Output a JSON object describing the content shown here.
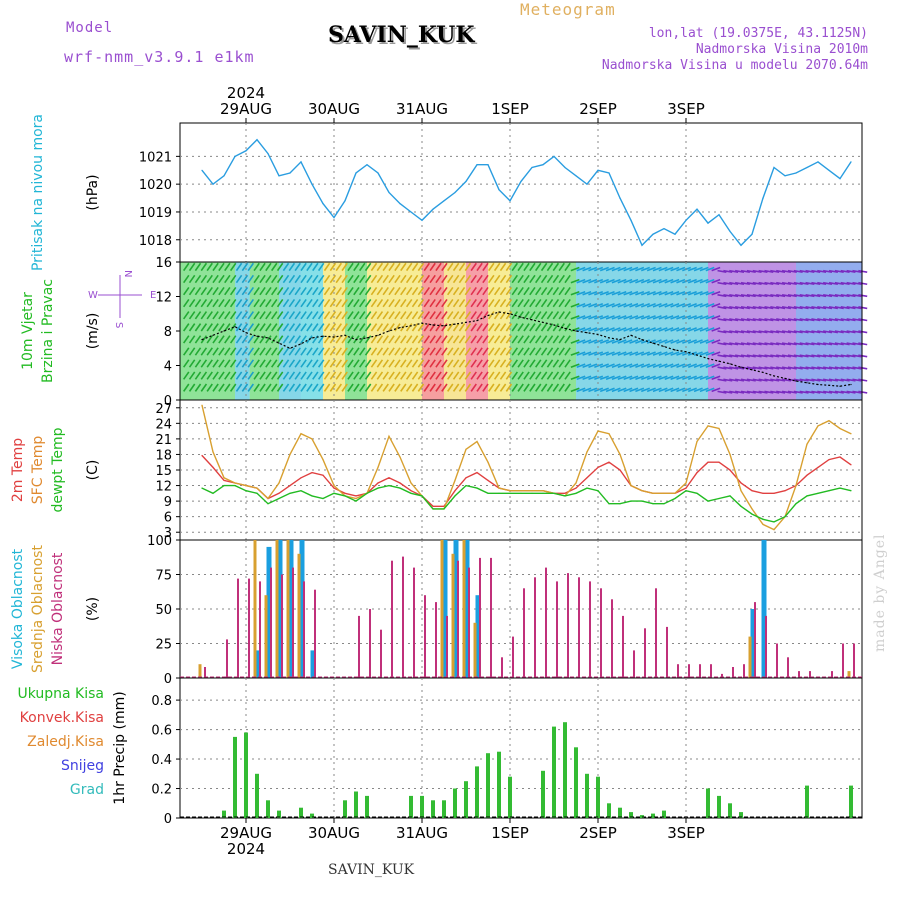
{
  "header": {
    "model_label": "Model",
    "model_name": "wrf-nmm_v3.9.1  e1km",
    "station": "SAVIN_KUK",
    "product": "Meteogram",
    "lonlat": "lon,lat (19.0375E, 43.1125N)",
    "elevation": "Nadmorska Visina 2010m",
    "model_elevation": "Nadmorska Visina u modelu 2070.64m"
  },
  "footer": {
    "station": "SAVIN_KUK",
    "watermark": "made by Angel"
  },
  "colors": {
    "pressure": "#2a9de0",
    "wind_avg": "#000000",
    "t2m": "#e04040",
    "sfc": "#d8a030",
    "dewpt": "#22bb22",
    "high_cloud": "#1a9fe0",
    "mid_cloud": "#d8a030",
    "low_cloud": "#c0307a",
    "precip_total": "#33bb33",
    "label_green": "#22bb22",
    "label_cyan": "#22b6d6",
    "label_magenta": "#c0307a",
    "label_orange": "#e08a30",
    "label_red": "#e04040",
    "label_blue": "#4040e0",
    "label_teal": "#33bbbb",
    "label_purple": "#9a4fd0"
  },
  "chart_data": [
    {
      "type": "line",
      "panel": "pressure",
      "title_lines": [
        "Pritisak na nivou mora"
      ],
      "ylabel": "(hPa)",
      "ylim": [
        1017.2,
        1022.2
      ],
      "yticks": [
        1018,
        1019,
        1020,
        1021
      ],
      "x_hours": [
        0,
        3,
        6,
        9,
        12,
        15,
        18,
        21,
        24,
        27,
        30,
        33,
        36,
        39,
        42,
        45,
        48,
        51,
        54,
        57,
        60,
        63,
        66,
        69,
        72,
        75,
        78,
        81,
        84,
        87,
        90,
        93,
        96,
        99,
        102,
        105,
        108,
        111,
        114,
        117,
        120,
        123,
        126,
        129,
        132,
        135,
        138,
        141,
        144,
        147,
        150,
        153,
        156,
        159,
        162,
        165,
        168,
        171,
        174,
        177
      ],
      "series": [
        {
          "values": [
            1020.5,
            1020.0,
            1020.3,
            1021.0,
            1021.2,
            1021.6,
            1021.1,
            1020.3,
            1020.4,
            1020.8,
            1020.0,
            1019.3,
            1018.8,
            1019.4,
            1020.4,
            1020.7,
            1020.4,
            1019.7,
            1019.3,
            1019.0,
            1018.7,
            1019.1,
            1019.4,
            1019.7,
            1020.1,
            1020.7,
            1020.7,
            1019.8,
            1019.4,
            1020.1,
            1020.6,
            1020.7,
            1021.0,
            1020.6,
            1020.3,
            1020.0,
            1020.5,
            1020.4,
            1019.5,
            1018.7,
            1017.8,
            1018.2,
            1018.4,
            1018.2,
            1018.7,
            1019.1,
            1018.6,
            1018.9,
            1018.3,
            1017.8,
            1018.2,
            1019.5,
            1020.6,
            1020.3,
            1020.4,
            1020.6,
            1020.8,
            1020.5,
            1020.2,
            1020.8
          ]
        }
      ]
    },
    {
      "type": "line",
      "panel": "wind",
      "title_lines": [
        "10m Vjetar",
        "Brzina i Pravac"
      ],
      "ylabel": "(m/s)",
      "ylim": [
        0,
        16
      ],
      "yticks": [
        0,
        4,
        8,
        12,
        16
      ],
      "compass": {
        "north": "N",
        "south": "S",
        "west": "W",
        "east": "E"
      },
      "x_hours": [
        0,
        3,
        6,
        9,
        12,
        15,
        18,
        21,
        24,
        27,
        30,
        33,
        36,
        39,
        42,
        45,
        48,
        51,
        54,
        57,
        60,
        63,
        66,
        69,
        72,
        75,
        78,
        81,
        84,
        87,
        90,
        93,
        96,
        99,
        102,
        105,
        108,
        111,
        114,
        117,
        120,
        123,
        126,
        129,
        132,
        135,
        138,
        141,
        144,
        147,
        150,
        153,
        156,
        159,
        162,
        165,
        168,
        171,
        174,
        177
      ],
      "series": [
        {
          "name": "avg",
          "values": [
            7.0,
            7.5,
            8.0,
            8.5,
            7.8,
            7.4,
            7.2,
            6.6,
            6.0,
            6.5,
            7.2,
            7.4,
            7.3,
            7.5,
            7.0,
            7.2,
            7.5,
            8.0,
            8.4,
            8.6,
            8.9,
            8.7,
            8.6,
            8.8,
            9.0,
            9.2,
            9.8,
            10.2,
            10.0,
            9.6,
            9.3,
            9.0,
            8.7,
            8.3,
            8.0,
            7.8,
            7.6,
            7.2,
            7.0,
            7.5,
            7.0,
            6.6,
            6.2,
            5.8,
            5.6,
            5.2,
            4.8,
            4.5,
            4.2,
            3.8,
            3.5,
            3.2,
            2.8,
            2.5,
            2.2,
            2.0,
            1.8,
            1.7,
            1.6,
            1.8
          ]
        }
      ]
    },
    {
      "type": "line",
      "panel": "temperature",
      "title_lines": [
        "2m Temp",
        "SFC Temp",
        "dewpt Temp"
      ],
      "ylabel": "(C)",
      "ylim": [
        1.5,
        28.5
      ],
      "yticks": [
        3,
        6,
        9,
        12,
        15,
        18,
        21,
        24,
        27
      ],
      "x_hours": [
        0,
        3,
        6,
        9,
        12,
        15,
        18,
        21,
        24,
        27,
        30,
        33,
        36,
        39,
        42,
        45,
        48,
        51,
        54,
        57,
        60,
        63,
        66,
        69,
        72,
        75,
        78,
        81,
        84,
        87,
        90,
        93,
        96,
        99,
        102,
        105,
        108,
        111,
        114,
        117,
        120,
        123,
        126,
        129,
        132,
        135,
        138,
        141,
        144,
        147,
        150,
        153,
        156,
        159,
        162,
        165,
        168,
        171,
        174,
        177
      ],
      "series": [
        {
          "name": "2m Temp",
          "values": [
            17.8,
            15.5,
            13.0,
            12.5,
            12.0,
            11.5,
            9.5,
            10.5,
            12.0,
            13.5,
            14.5,
            14.0,
            11.5,
            10.5,
            10.0,
            10.5,
            12.5,
            13.5,
            12.5,
            11.0,
            10.0,
            8.0,
            8.0,
            11.0,
            13.5,
            14.5,
            13.0,
            11.5,
            11.0,
            11.0,
            11.0,
            11.0,
            10.5,
            10.5,
            11.5,
            13.5,
            15.5,
            16.5,
            15.0,
            12.0,
            11.0,
            10.5,
            10.5,
            10.5,
            11.5,
            14.5,
            16.5,
            16.5,
            15.0,
            12.5,
            11.0,
            10.5,
            10.5,
            11.0,
            12.0,
            14.0,
            15.5,
            17.0,
            17.5,
            16.0
          ]
        },
        {
          "name": "SFC Temp",
          "values": [
            27.5,
            18.5,
            13.5,
            12.5,
            12.0,
            11.5,
            9.5,
            12.5,
            18.0,
            22.0,
            21.0,
            17.0,
            12.0,
            10.0,
            9.5,
            10.5,
            15.5,
            21.5,
            17.5,
            12.5,
            10.0,
            7.5,
            7.5,
            13.0,
            19.0,
            20.5,
            16.5,
            11.5,
            11.0,
            11.0,
            11.0,
            11.0,
            10.5,
            10.0,
            12.5,
            18.5,
            22.5,
            22.0,
            18.0,
            12.0,
            11.0,
            10.5,
            10.5,
            10.5,
            12.5,
            20.5,
            23.5,
            23.0,
            18.0,
            11.0,
            7.5,
            4.5,
            3.5,
            6.0,
            12.0,
            20.0,
            23.5,
            24.5,
            23.0,
            22.0
          ]
        },
        {
          "name": "dewpt Temp",
          "values": [
            11.5,
            10.5,
            12.0,
            12.0,
            11.0,
            10.5,
            8.5,
            9.5,
            10.5,
            11.0,
            10.0,
            9.5,
            10.5,
            10.0,
            9.0,
            10.5,
            11.5,
            12.0,
            11.5,
            10.5,
            10.0,
            7.5,
            7.5,
            10.0,
            12.0,
            11.5,
            10.5,
            10.5,
            10.5,
            10.5,
            10.5,
            10.5,
            10.5,
            10.0,
            10.5,
            11.5,
            11.0,
            8.5,
            8.5,
            9.0,
            9.0,
            8.5,
            8.5,
            9.5,
            11.0,
            10.5,
            9.0,
            9.5,
            10.0,
            8.0,
            6.5,
            5.5,
            5.0,
            6.0,
            8.5,
            10.0,
            10.5,
            11.0,
            11.5,
            11.0
          ]
        }
      ]
    },
    {
      "type": "bar",
      "panel": "cloud",
      "title_lines": [
        "Visoka Oblacnost",
        "Srednja Oblacnost",
        "Niska Oblacnost"
      ],
      "ylabel": "(%)",
      "ylim": [
        0,
        100
      ],
      "yticks": [
        0,
        25,
        50,
        75,
        100
      ],
      "x_hours": [
        0,
        3,
        6,
        9,
        12,
        15,
        18,
        21,
        24,
        27,
        30,
        33,
        36,
        39,
        42,
        45,
        48,
        51,
        54,
        57,
        60,
        63,
        66,
        69,
        72,
        75,
        78,
        81,
        84,
        87,
        90,
        93,
        96,
        99,
        102,
        105,
        108,
        111,
        114,
        117,
        120,
        123,
        126,
        129,
        132,
        135,
        138,
        141,
        144,
        147,
        150,
        153,
        156,
        159,
        162,
        165,
        168,
        171,
        174,
        177
      ],
      "series": [
        {
          "name": "Visoka Oblacnost",
          "values": [
            0,
            0,
            0,
            0,
            0,
            20,
            95,
            100,
            100,
            100,
            20,
            0,
            0,
            0,
            0,
            0,
            0,
            0,
            0,
            0,
            0,
            0,
            100,
            100,
            100,
            60,
            0,
            0,
            0,
            0,
            0,
            0,
            0,
            0,
            0,
            0,
            0,
            0,
            0,
            0,
            0,
            0,
            0,
            0,
            0,
            0,
            0,
            0,
            0,
            0,
            50,
            100,
            0,
            0,
            0,
            0,
            0,
            0,
            0,
            0
          ]
        },
        {
          "name": "Srednja Oblacnost",
          "values": [
            10,
            0,
            0,
            0,
            0,
            100,
            60,
            100,
            100,
            90,
            0,
            0,
            0,
            0,
            0,
            0,
            0,
            0,
            0,
            0,
            0,
            0,
            100,
            90,
            100,
            40,
            0,
            0,
            0,
            0,
            0,
            0,
            0,
            0,
            0,
            0,
            0,
            0,
            0,
            0,
            0,
            0,
            0,
            0,
            0,
            0,
            0,
            0,
            0,
            0,
            30,
            0,
            0,
            0,
            0,
            0,
            0,
            0,
            0,
            5
          ]
        },
        {
          "name": "Niska Oblacnost",
          "values": [
            8,
            0,
            28,
            72,
            72,
            70,
            80,
            75,
            80,
            70,
            64,
            0,
            0,
            0,
            45,
            50,
            35,
            85,
            88,
            80,
            60,
            55,
            45,
            85,
            80,
            87,
            87,
            15,
            30,
            65,
            73,
            80,
            70,
            76,
            73,
            70,
            65,
            57,
            45,
            20,
            36,
            65,
            37,
            10,
            10,
            10,
            10,
            3,
            8,
            10,
            55,
            45,
            25,
            15,
            5,
            5,
            0,
            5,
            25,
            25
          ]
        }
      ]
    },
    {
      "type": "bar",
      "panel": "precip",
      "title_lines": [
        "Ukupna Kisa",
        "Konvek.Kisa",
        "Zaledj.Kisa",
        "Snijeg",
        "Grad"
      ],
      "ylabel": "1hr Precip (mm)",
      "ylim": [
        0,
        0.95
      ],
      "yticks": [
        0,
        0.2,
        0.4,
        0.6,
        0.8
      ],
      "x_hours": [
        0,
        3,
        6,
        9,
        12,
        15,
        18,
        21,
        24,
        27,
        30,
        33,
        36,
        39,
        42,
        45,
        48,
        51,
        54,
        57,
        60,
        63,
        66,
        69,
        72,
        75,
        78,
        81,
        84,
        87,
        90,
        93,
        96,
        99,
        102,
        105,
        108,
        111,
        114,
        117,
        120,
        123,
        126,
        129,
        132,
        135,
        138,
        141,
        144,
        147,
        150,
        153,
        156,
        159,
        162,
        165,
        168,
        171,
        174,
        177
      ],
      "series": [
        {
          "name": "Ukupna Kisa",
          "values": [
            0,
            0,
            0.05,
            0.55,
            0.58,
            0.3,
            0.12,
            0.05,
            0,
            0.07,
            0.03,
            0,
            0,
            0.12,
            0.18,
            0.15,
            0,
            0,
            0,
            0.15,
            0.15,
            0.12,
            0.12,
            0.2,
            0.25,
            0.35,
            0.44,
            0.45,
            0.28,
            0,
            0,
            0.32,
            0.62,
            0.65,
            0.48,
            0.3,
            0.28,
            0.1,
            0.07,
            0.04,
            0.02,
            0.03,
            0.05,
            0,
            0,
            0,
            0.2,
            0.15,
            0.1,
            0.04,
            0,
            0,
            0,
            0,
            0,
            0.22,
            0,
            0,
            0,
            0.22
          ]
        }
      ],
      "xlabels_bottom": [
        {
          "hour": 12,
          "label": "29AUG"
        },
        {
          "hour": 36,
          "label": "30AUG"
        },
        {
          "hour": 60,
          "label": "31AUG"
        },
        {
          "hour": 84,
          "label": "1SEP"
        },
        {
          "hour": 108,
          "label": "2SEP"
        },
        {
          "hour": 132,
          "label": "3SEP"
        }
      ],
      "year_label": "2024"
    }
  ],
  "x_axis": {
    "day_labels": [
      "29AUG",
      "30AUG",
      "31AUG",
      "1SEP",
      "2SEP",
      "3SEP"
    ],
    "year": "2024"
  }
}
